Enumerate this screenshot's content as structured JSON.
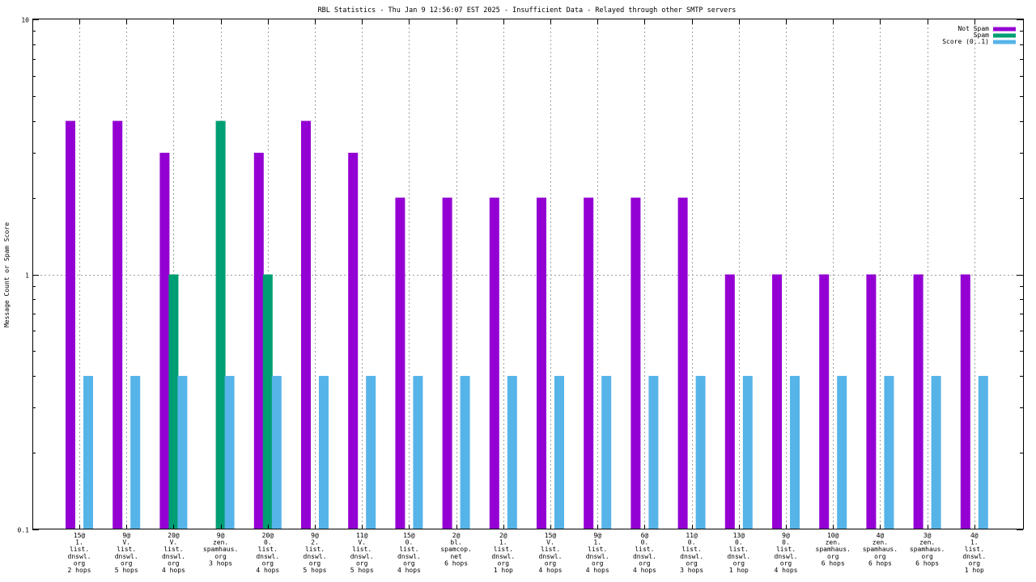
{
  "chart_data": {
    "type": "bar",
    "title": "RBL Statistics - Thu Jan  9 12:56:07 EST 2025 - Insufficient Data - Relayed through other SMTP servers",
    "xlabel": "",
    "ylabel": "Message Count or Spam Score",
    "yscale": "log",
    "ylim": [
      0.1,
      10
    ],
    "yticks": [
      "0.1",
      "1",
      "10"
    ],
    "grid": true,
    "legend_position": "top-right",
    "categories": [
      [
        "15@",
        "1.",
        "list.",
        "dnswl.",
        "org",
        "2 hops"
      ],
      [
        "9@",
        "V.",
        "list.",
        "dnswl.",
        "org",
        "5 hops"
      ],
      [
        "20@",
        "V.",
        "list.",
        "dnswl.",
        "org",
        "4 hops"
      ],
      [
        "9@",
        "zen.",
        "spamhaus.",
        "org",
        "3 hops"
      ],
      [
        "20@",
        "0.",
        "list.",
        "dnswl.",
        "org",
        "4 hops"
      ],
      [
        "9@",
        "2.",
        "list.",
        "dnswl.",
        "org",
        "5 hops"
      ],
      [
        "11@",
        "V.",
        "list.",
        "dnswl.",
        "org",
        "5 hops"
      ],
      [
        "15@",
        "0.",
        "list.",
        "dnswl.",
        "org",
        "4 hops"
      ],
      [
        "2@",
        "bl.",
        "spamcop.",
        "net",
        "6 hops"
      ],
      [
        "2@",
        "1.",
        "list.",
        "dnswl.",
        "org",
        "1 hop"
      ],
      [
        "15@",
        "V.",
        "list.",
        "dnswl.",
        "org",
        "4 hops"
      ],
      [
        "9@",
        "1.",
        "list.",
        "dnswl.",
        "org",
        "4 hops"
      ],
      [
        "6@",
        "0.",
        "list.",
        "dnswl.",
        "org",
        "4 hops"
      ],
      [
        "11@",
        "0.",
        "list.",
        "dnswl.",
        "org",
        "3 hops"
      ],
      [
        "13@",
        "0.",
        "list.",
        "dnswl.",
        "org",
        "1 hop"
      ],
      [
        "9@",
        "0.",
        "list.",
        "dnswl.",
        "org",
        "4 hops"
      ],
      [
        "10@",
        "zen.",
        "spamhaus.",
        "org",
        "6 hops"
      ],
      [
        "4@",
        "zen.",
        "spamhaus.",
        "org",
        "6 hops"
      ],
      [
        "3@",
        "zen.",
        "spamhaus.",
        "org",
        "6 hops"
      ],
      [
        "4@",
        "1.",
        "list.",
        "dnswl.",
        "org",
        "1 hop"
      ]
    ],
    "series": [
      {
        "name": "Not Spam",
        "color": "#9400d3",
        "values": [
          4,
          4,
          3,
          null,
          3,
          4,
          3,
          2,
          2,
          2,
          2,
          2,
          2,
          2,
          1,
          1,
          1,
          1,
          1,
          1
        ]
      },
      {
        "name": "Spam",
        "color": "#009e73",
        "values": [
          null,
          null,
          1,
          4,
          1,
          null,
          null,
          null,
          null,
          null,
          null,
          null,
          null,
          null,
          null,
          null,
          null,
          null,
          null,
          null
        ]
      },
      {
        "name": "Score (0..1)",
        "color": "#56b4e9",
        "values": [
          0.4,
          0.4,
          0.4,
          0.4,
          0.4,
          0.4,
          0.4,
          0.4,
          0.4,
          0.4,
          0.4,
          0.4,
          0.4,
          0.4,
          0.4,
          0.4,
          0.4,
          0.4,
          0.4,
          0.4
        ]
      }
    ]
  }
}
